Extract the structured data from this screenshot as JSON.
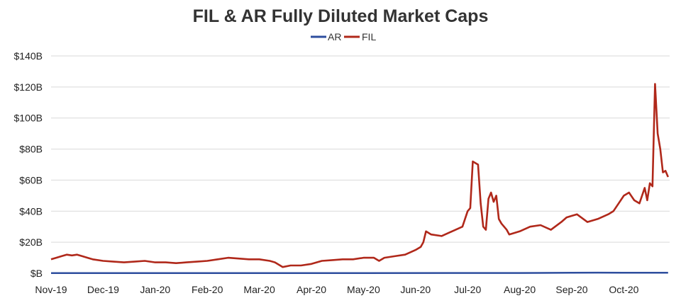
{
  "chart_data": {
    "type": "line",
    "title": "FIL & AR Fully Diluted Market Caps",
    "xlabel": "",
    "ylabel": "",
    "ylim": [
      0,
      140
    ],
    "y_ticks": [
      {
        "value": 0,
        "label": "$B"
      },
      {
        "value": 20,
        "label": "$20B"
      },
      {
        "value": 40,
        "label": "$40B"
      },
      {
        "value": 60,
        "label": "$60B"
      },
      {
        "value": 80,
        "label": "$80B"
      },
      {
        "value": 100,
        "label": "$100B"
      },
      {
        "value": 120,
        "label": "$120B"
      },
      {
        "value": 140,
        "label": "$140B"
      }
    ],
    "x_ticks": [
      "Nov-19",
      "Dec-19",
      "Jan-20",
      "Feb-20",
      "Mar-20",
      "Apr-20",
      "May-20",
      "Jun-20",
      "Jul-20",
      "Aug-20",
      "Sep-20",
      "Oct-20"
    ],
    "x_range_months": [
      0,
      11.85
    ],
    "legend_position": "top-center",
    "grid": true,
    "series": [
      {
        "name": "AR",
        "color": "#2e4e9e",
        "x": [
          0,
          2,
          4,
          6,
          8,
          9,
          10,
          10.5,
          11,
          11.85
        ],
        "values": [
          0.1,
          0.1,
          0.1,
          0.1,
          0.2,
          0.2,
          0.3,
          0.4,
          0.3,
          0.3
        ]
      },
      {
        "name": "FIL",
        "color": "#b0281a",
        "x": [
          0,
          0.1,
          0.2,
          0.3,
          0.4,
          0.5,
          0.6,
          0.7,
          0.8,
          1.0,
          1.2,
          1.4,
          1.6,
          1.8,
          2.0,
          2.2,
          2.4,
          2.6,
          2.8,
          3.0,
          3.2,
          3.4,
          3.6,
          3.8,
          4.0,
          4.2,
          4.3,
          4.45,
          4.6,
          4.8,
          5.0,
          5.2,
          5.4,
          5.6,
          5.8,
          6.0,
          6.2,
          6.3,
          6.4,
          6.6,
          6.8,
          7.0,
          7.1,
          7.15,
          7.2,
          7.3,
          7.5,
          7.7,
          7.9,
          8.0,
          8.05,
          8.1,
          8.2,
          8.25,
          8.3,
          8.35,
          8.4,
          8.45,
          8.5,
          8.55,
          8.6,
          8.65,
          8.7,
          8.75,
          8.8,
          9.0,
          9.2,
          9.4,
          9.6,
          9.8,
          9.9,
          10.0,
          10.1,
          10.3,
          10.5,
          10.7,
          10.8,
          10.9,
          11.0,
          11.1,
          11.2,
          11.3,
          11.4,
          11.45,
          11.5,
          11.55,
          11.6,
          11.65,
          11.7,
          11.75,
          11.8,
          11.85
        ],
        "values": [
          9,
          10,
          11,
          12,
          11.5,
          12,
          11,
          10,
          9,
          8,
          7.5,
          7,
          7.5,
          8,
          7,
          7,
          6.5,
          7,
          7.5,
          8,
          9,
          10,
          9.5,
          9,
          9,
          8,
          7,
          4,
          5,
          5,
          6,
          8,
          8.5,
          9,
          9,
          10,
          10,
          8,
          10,
          11,
          12,
          15,
          17,
          20,
          27,
          25,
          24,
          27,
          30,
          40,
          42,
          72,
          70,
          45,
          30,
          28,
          48,
          52,
          46,
          50,
          35,
          32,
          30,
          28,
          25,
          27,
          30,
          31,
          28,
          33,
          36,
          37,
          38,
          33,
          35,
          38,
          40,
          45,
          50,
          52,
          47,
          45,
          55,
          47,
          58,
          56,
          122,
          90,
          80,
          65,
          66,
          62
        ]
      }
    ]
  }
}
